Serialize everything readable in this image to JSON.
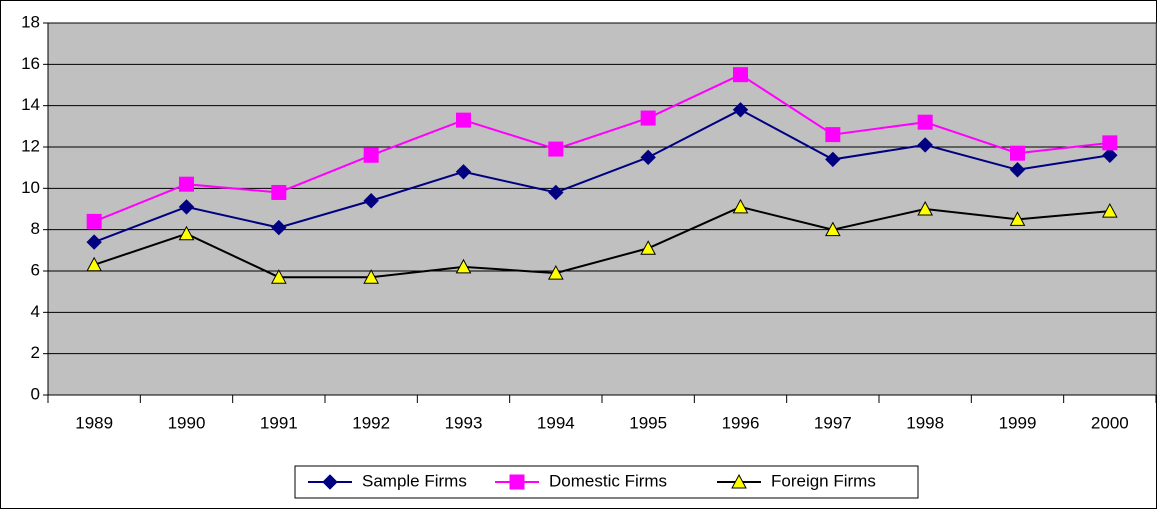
{
  "chart_data": {
    "type": "line",
    "categories": [
      "1989",
      "1990",
      "1991",
      "1992",
      "1993",
      "1994",
      "1995",
      "1996",
      "1997",
      "1998",
      "1999",
      "2000"
    ],
    "series": [
      {
        "name": "Sample Firms",
        "color": "#000080",
        "marker": "diamond",
        "values": [
          7.4,
          9.1,
          8.1,
          9.4,
          10.8,
          9.8,
          11.5,
          13.8,
          11.4,
          12.1,
          10.9,
          11.6
        ]
      },
      {
        "name": "Domestic Firms",
        "color": "#ff00ff",
        "marker": "square",
        "values": [
          8.4,
          10.2,
          9.8,
          11.6,
          13.3,
          11.9,
          13.4,
          15.5,
          12.6,
          13.2,
          11.7,
          12.2
        ]
      },
      {
        "name": "Foreign Firms",
        "color": "#000000",
        "marker": "triangle",
        "marker_fill": "#ffff00",
        "values": [
          6.3,
          7.8,
          5.7,
          5.7,
          6.2,
          5.9,
          7.1,
          9.1,
          8.0,
          9.0,
          8.5,
          8.9
        ]
      }
    ],
    "ylim": [
      0,
      18
    ],
    "yticks": [
      0,
      2,
      4,
      6,
      8,
      10,
      12,
      14,
      16,
      18
    ],
    "grid": true,
    "legend": "bottom"
  }
}
